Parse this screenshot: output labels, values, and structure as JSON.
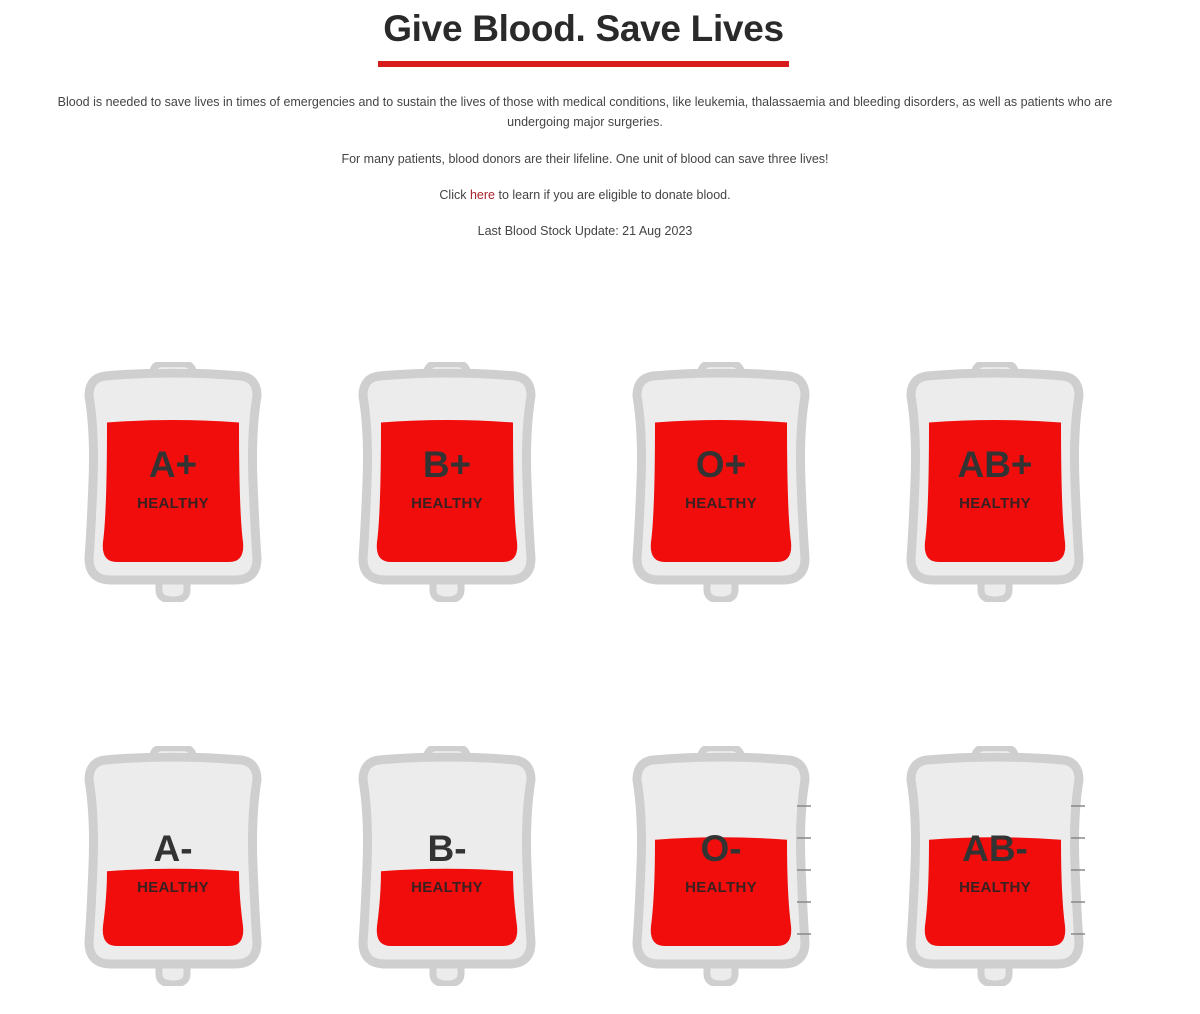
{
  "header": {
    "title": "Give Blood. Save Lives",
    "accent_color": "#d71a1a"
  },
  "intro": {
    "paragraph1": "Blood is needed to save lives in times of emergencies and to sustain the lives of those with medical conditions, like leukemia, thalassaemia and bleeding disorders, as well as patients who are undergoing major surgeries.",
    "paragraph2": "For many patients, blood donors are their lifeline. One unit of blood can save three lives!",
    "click_prefix": "Click ",
    "click_link": "here",
    "click_suffix": " to learn if you are eligible to donate blood.",
    "last_update": "Last Blood Stock Update: 21 Aug 2023"
  },
  "colors": {
    "blood": "#f20d0d",
    "bag_outline": "#cfcfcf",
    "bag_inner": "#ececec"
  },
  "bags": [
    {
      "type": "A+",
      "status": "HEALTHY",
      "fill_percent": 78,
      "ticks": false
    },
    {
      "type": "B+",
      "status": "HEALTHY",
      "fill_percent": 78,
      "ticks": false
    },
    {
      "type": "O+",
      "status": "HEALTHY",
      "fill_percent": 78,
      "ticks": false
    },
    {
      "type": "AB+",
      "status": "HEALTHY",
      "fill_percent": 78,
      "ticks": false
    },
    {
      "type": "A-",
      "status": "HEALTHY",
      "fill_percent": 41,
      "ticks": false
    },
    {
      "type": "B-",
      "status": "HEALTHY",
      "fill_percent": 41,
      "ticks": false
    },
    {
      "type": "O-",
      "status": "HEALTHY",
      "fill_percent": 59,
      "ticks": true
    },
    {
      "type": "AB-",
      "status": "HEALTHY",
      "fill_percent": 59,
      "ticks": true
    }
  ]
}
